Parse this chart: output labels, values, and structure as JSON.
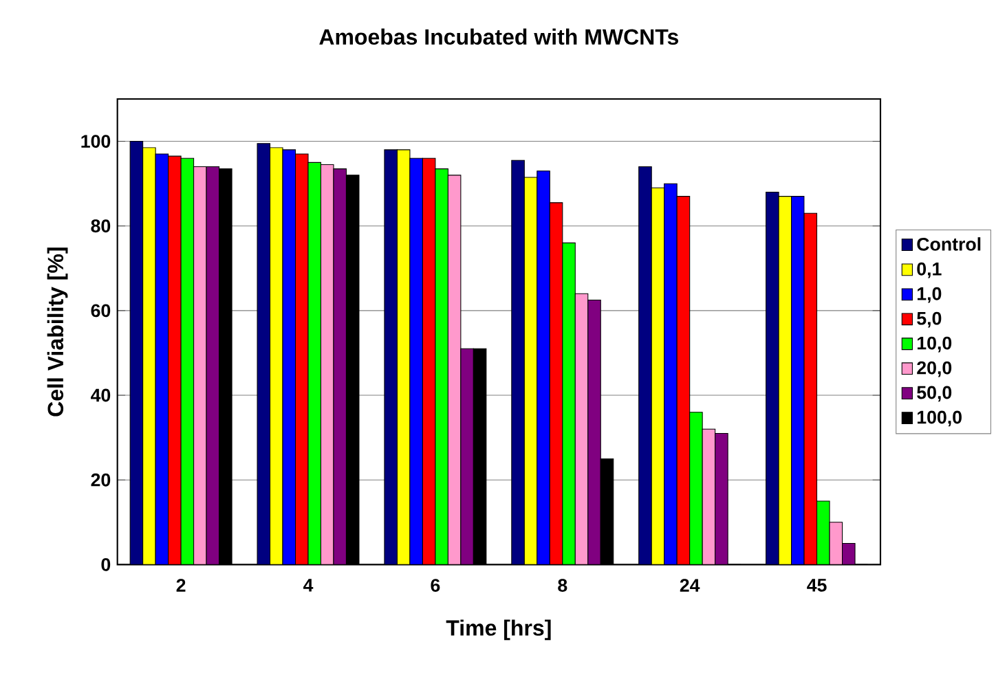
{
  "chart_data": {
    "type": "bar",
    "title": "Amoebas Incubated with MWCNTs",
    "xlabel": "Time [hrs]",
    "ylabel": "Cell Viability [%]",
    "categories": [
      "2",
      "4",
      "6",
      "8",
      "24",
      "45"
    ],
    "series": [
      {
        "name": "Control",
        "color": "#000080",
        "values": [
          100,
          99.5,
          98,
          95.5,
          94,
          88
        ]
      },
      {
        "name": "0,1",
        "color": "#ffff00",
        "values": [
          98.5,
          98.5,
          98,
          91.5,
          89,
          87
        ]
      },
      {
        "name": "1,0",
        "color": "#0000ff",
        "values": [
          97,
          98,
          96,
          93,
          90,
          87
        ]
      },
      {
        "name": "5,0",
        "color": "#ff0000",
        "values": [
          96.5,
          97,
          96,
          85.5,
          87,
          83
        ]
      },
      {
        "name": "10,0",
        "color": "#00ff00",
        "values": [
          96,
          95,
          93.5,
          76,
          36,
          15
        ]
      },
      {
        "name": "20,0",
        "color": "#ff99cc",
        "values": [
          94,
          94.5,
          92,
          64,
          32,
          10
        ]
      },
      {
        "name": "50,0",
        "color": "#800080",
        "values": [
          94,
          93.5,
          51,
          62.5,
          31,
          5
        ]
      },
      {
        "name": "100,0",
        "color": "#000000",
        "values": [
          93.5,
          92,
          51,
          25,
          0,
          0
        ]
      }
    ],
    "ylim": [
      0,
      110
    ],
    "yticks": [
      0,
      20,
      40,
      60,
      80,
      100
    ],
    "grid": "y",
    "legend": "right"
  }
}
